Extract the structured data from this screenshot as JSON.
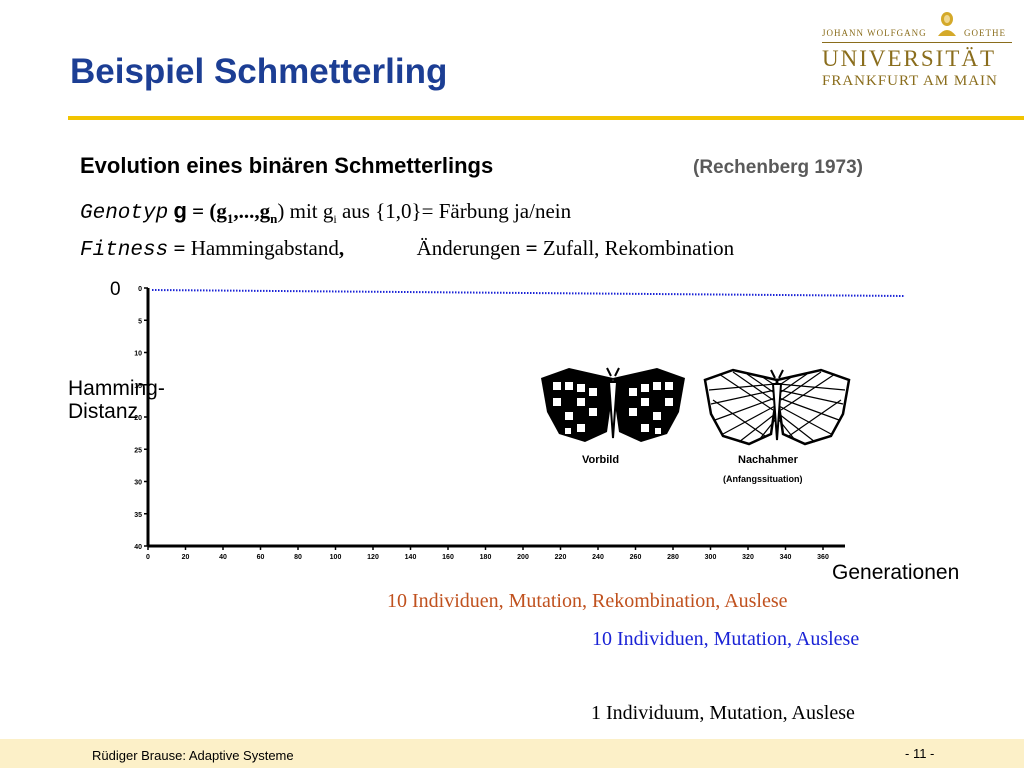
{
  "title": "Beispiel Schmetterling",
  "logo": {
    "line1": "JOHANN WOLFGANG",
    "line1b": "GOETHE",
    "line2": "UNIVERSITÄT",
    "line3": "FRANKFURT AM MAIN"
  },
  "subtitle": "Evolution eines binären Schmetterlings",
  "source": "(Rechenberg 1973)",
  "genotype": {
    "label": "Genotyp",
    "var": "g",
    "eq": "= (",
    "g1": "g",
    "sub1": "1",
    "dots": ",...,",
    "gn": "g",
    "subn": "n",
    "close": ")",
    "mit": " mit g",
    "subi": "i",
    "rest": " aus {1,0}= Färbung ja/nein"
  },
  "fitness": {
    "label": "Fitness",
    "eq": "=",
    "text": " Hammingabstand",
    "comma": ",",
    "changes": "Änderungen",
    "eq2": "=",
    "changes_text": " Zufall, Rekombination"
  },
  "chart_data": {
    "type": "line",
    "y_ticks": [
      "0",
      "5",
      "10",
      "15",
      "20",
      "25",
      "30",
      "35",
      "40"
    ],
    "x_ticks": [
      "0",
      "20",
      "40",
      "60",
      "80",
      "100",
      "120",
      "140",
      "160",
      "180",
      "200",
      "220",
      "240",
      "260",
      "280",
      "300",
      "320",
      "340",
      "360"
    ],
    "xlim": [
      0,
      360
    ],
    "ylim": [
      0,
      40
    ],
    "y_inverted": true,
    "zero_label": "0",
    "ylabel_top": "Hamming-",
    "ylabel_bottom": "Distanz",
    "xlabel": "Generationen",
    "target_line_y": 0,
    "image_labels": {
      "model": "Vorbild",
      "mimic": "Nachahmer",
      "mimic_note": "(Anfangssituation)"
    }
  },
  "legend": {
    "item1": "10 Individuen, Mutation, Rekombination, Auslese",
    "item2": "10 Individuen, Mutation, Auslese",
    "item3": "1 Individuum, Mutation, Auslese"
  },
  "colors": {
    "title": "#1c3e94",
    "rule": "#f2c400",
    "legend1": "#c0511e",
    "legend2": "#1a23d6",
    "legend3": "#000000",
    "target_line": "#1a23d6",
    "footer_bg": "#fcf0c8"
  },
  "footer": {
    "author": "Rüdiger Brause: Adaptive Systeme",
    "page": "- 11 -"
  }
}
